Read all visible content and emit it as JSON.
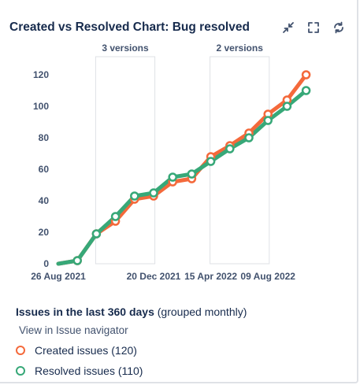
{
  "header": {
    "title": "Created vs Resolved Chart: Bug resolved"
  },
  "icons": {
    "collapse": "collapse-icon",
    "fullscreen": "fullscreen-icon",
    "refresh": "refresh-icon"
  },
  "colors": {
    "created": "#f4693b",
    "resolved": "#37a878",
    "annotation_box": "#dfe1e6",
    "text": "#172b4d",
    "axis_text": "#42526e"
  },
  "chart_data": {
    "type": "line",
    "annotations": [
      {
        "label": "3 versions",
        "from_index": 2,
        "to_index": 5
      },
      {
        "label": "2 versions",
        "from_index": 8,
        "to_index": 11
      }
    ],
    "xticks": [
      {
        "label": "26 Aug 2021",
        "index": 0
      },
      {
        "label": "20 Dec 2021",
        "index": 5
      },
      {
        "label": "15 Apr 2022",
        "index": 8
      },
      {
        "label": "09 Aug 2022",
        "index": 11
      }
    ],
    "x_count": 14,
    "ylim": [
      0,
      120
    ],
    "yticks": [
      0,
      20,
      40,
      60,
      80,
      100,
      120
    ],
    "series": [
      {
        "name": "Created issues",
        "values": [
          0,
          2,
          19,
          27,
          41,
          43,
          52,
          54,
          68,
          75,
          83,
          95,
          104,
          120
        ]
      },
      {
        "name": "Resolved issues",
        "values": [
          0,
          2,
          19,
          30,
          43,
          45,
          55,
          57,
          65,
          73,
          80,
          91,
          100,
          110
        ]
      }
    ],
    "marker_start_index": 1
  },
  "legend": {
    "title": "Issues in the last 360 days",
    "subtitle": "(grouped monthly)",
    "nav_link": "View in Issue navigator",
    "items": [
      {
        "label": "Created issues (120)"
      },
      {
        "label": "Resolved issues (110)"
      }
    ]
  }
}
